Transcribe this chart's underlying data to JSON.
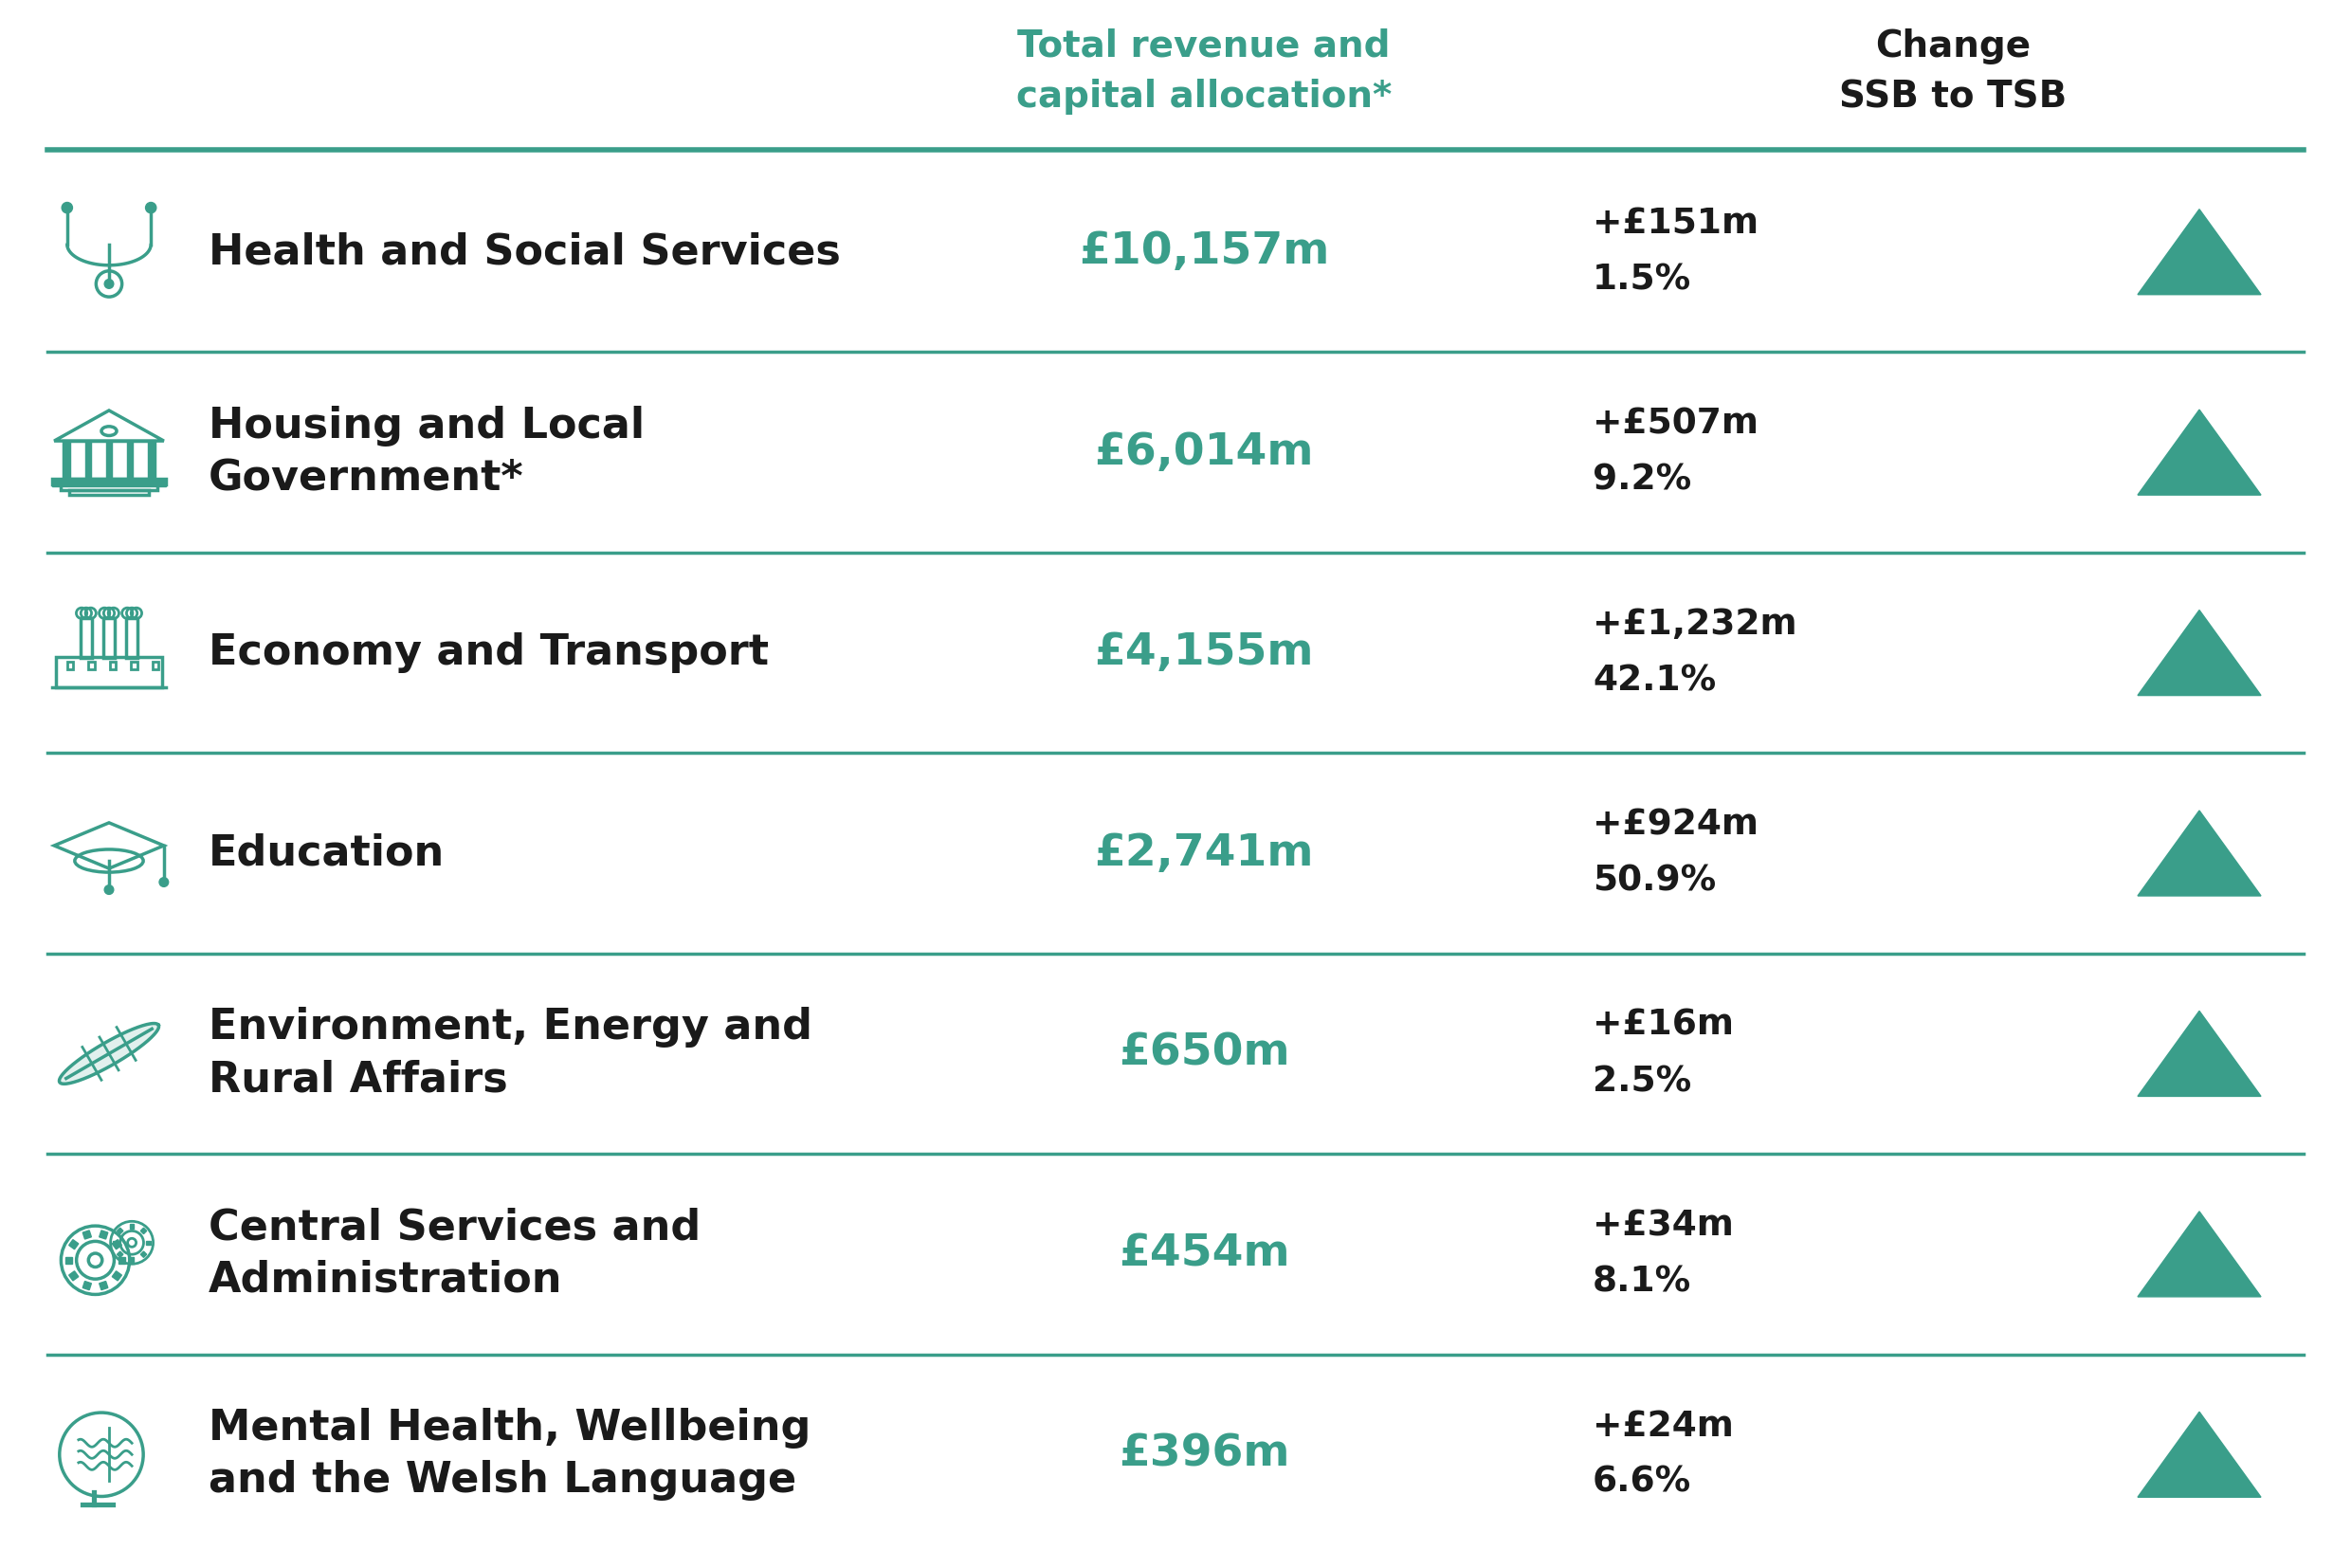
{
  "bg_color": "#ffffff",
  "teal_color": "#3a9e8a",
  "dark_teal": "#1a5c4a",
  "dark_color": "#1a1a1a",
  "header_col1": "Total revenue and\ncapital allocation*",
  "header_col2": "Change\nSSB to TSB",
  "rows": [
    {
      "label": "Health and Social Services",
      "allocation": "£10,157m",
      "change": "+£151m",
      "pct": "1.5%"
    },
    {
      "label": "Housing and Local\nGovernment*",
      "allocation": "£6,014m",
      "change": "+£507m",
      "pct": "9.2%"
    },
    {
      "label": "Economy and Transport",
      "allocation": "£4,155m",
      "change": "+£1,232m",
      "pct": "42.1%"
    },
    {
      "label": "Education",
      "allocation": "£2,741m",
      "change": "+£924m",
      "pct": "50.9%"
    },
    {
      "label": "Environment, Energy and\nRural Affairs",
      "allocation": "£650m",
      "change": "+£16m",
      "pct": "2.5%"
    },
    {
      "label": "Central Services and\nAdministration",
      "allocation": "£454m",
      "change": "+£34m",
      "pct": "8.1%"
    },
    {
      "label": "Mental Health, Wellbeing\nand the Welsh Language",
      "allocation": "£396m",
      "change": "+£24m",
      "pct": "6.6%"
    }
  ],
  "separator_color": "#3a9e8a",
  "separator_linewidth": 2.5,
  "label_fontsize": 32,
  "alloc_fontsize": 34,
  "change_fontsize": 27,
  "pct_fontsize": 27,
  "header_fontsize": 28
}
